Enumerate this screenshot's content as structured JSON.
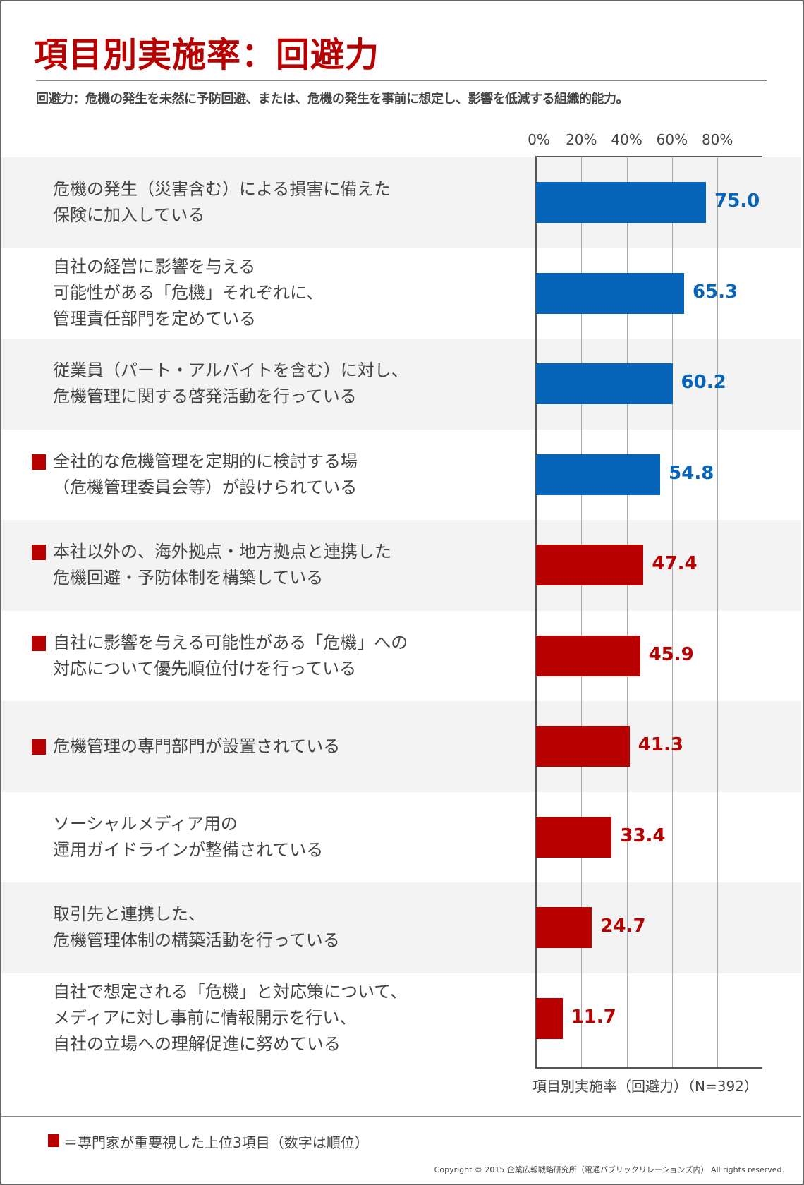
{
  "title": "項目別実施率：回避力",
  "subtitle": "回避力：危機の発生を未然に予防回避、または、危機の発生を事前に想定し、影響を低減する組織的能力。",
  "colors": {
    "title": "#b80000",
    "blue": "#0563b8",
    "red": "#b80000",
    "row_alt": "#f3f3f3"
  },
  "chart_data": {
    "type": "bar",
    "orientation": "horizontal",
    "xlim": [
      0,
      100
    ],
    "xticks": [
      "0%",
      "20%",
      "40%",
      "60%",
      "80%"
    ],
    "grid": true,
    "xlabel": "項目別実施率（回避力）（N=392）",
    "items": [
      {
        "lines": [
          "危機の発生（災害含む）による損害に備えた",
          "保険に加入している"
        ],
        "value": 75.0,
        "label": "75.0",
        "color": "blue",
        "expert_top3": false
      },
      {
        "lines": [
          "自社の経営に影響を与える",
          "可能性がある「危機」それぞれに、",
          "管理責任部門を定めている"
        ],
        "value": 65.3,
        "label": "65.3",
        "color": "blue",
        "expert_top3": false
      },
      {
        "lines": [
          "従業員（パート・アルバイトを含む）に対し、",
          "危機管理に関する啓発活動を行っている"
        ],
        "value": 60.2,
        "label": "60.2",
        "color": "blue",
        "expert_top3": false
      },
      {
        "lines": [
          "全社的な危機管理を定期的に検討する場",
          "（危機管理委員会等）が設けられている"
        ],
        "value": 54.8,
        "label": "54.8",
        "color": "blue",
        "expert_top3": true
      },
      {
        "lines": [
          "本社以外の、海外拠点・地方拠点と連携した",
          "危機回避・予防体制を構築している"
        ],
        "value": 47.4,
        "label": "47.4",
        "color": "red",
        "expert_top3": true
      },
      {
        "lines": [
          "自社に影響を与える可能性がある「危機」への",
          "対応について優先順位付けを行っている"
        ],
        "value": 45.9,
        "label": "45.9",
        "color": "red",
        "expert_top3": true
      },
      {
        "lines": [
          "危機管理の専門部門が設置されている"
        ],
        "value": 41.3,
        "label": "41.3",
        "color": "red",
        "expert_top3": true
      },
      {
        "lines": [
          "ソーシャルメディア用の",
          "運用ガイドラインが整備されている"
        ],
        "value": 33.4,
        "label": "33.4",
        "color": "red",
        "expert_top3": false
      },
      {
        "lines": [
          "取引先と連携した、",
          "危機管理体制の構築活動を行っている"
        ],
        "value": 24.7,
        "label": "24.7",
        "color": "red",
        "expert_top3": false
      },
      {
        "lines": [
          "自社で想定される「危機」と対応策について、",
          "メディアに対し事前に情報開示を行い、",
          "自社の立場への理解促進に努めている"
        ],
        "value": 11.7,
        "label": "11.7",
        "color": "red",
        "expert_top3": false
      }
    ]
  },
  "legend": "＝専門家が重要視した上位3項目（数字は順位）",
  "copyright": "Copyright © 2015 企業広報戦略研究所（電通パブリックリレーションズ内） All rights reserved."
}
